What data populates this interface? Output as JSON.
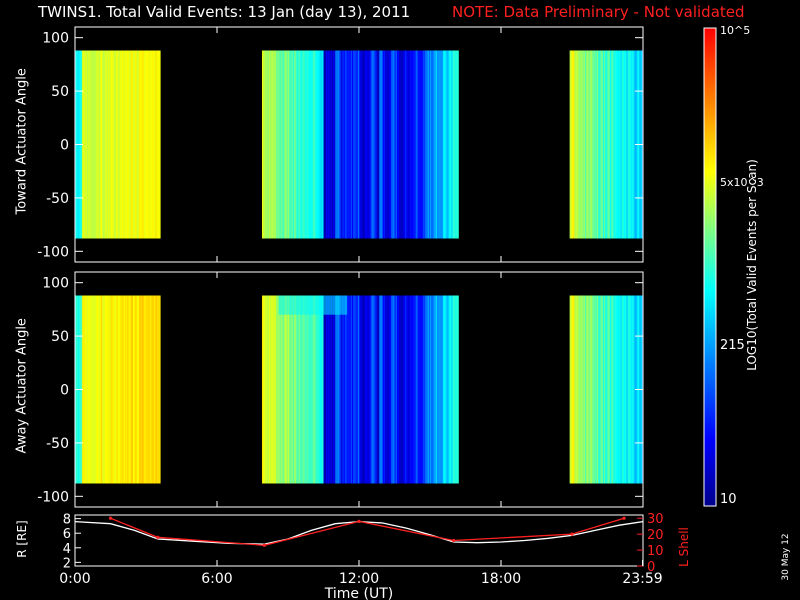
{
  "title": {
    "main": "TWINS1. Total Valid Events: 13 Jan (day  13), 2011",
    "note": "NOTE: Data Preliminary - Not validated"
  },
  "colorbar": {
    "label": "LOG10(Total Valid Events per Scan)",
    "ticks": [
      "10^5",
      "5x10^3",
      "215",
      "10"
    ],
    "colors": [
      "#00008c",
      "#0000ff",
      "#0080ff",
      "#00ffff",
      "#80ff80",
      "#ffff00",
      "#ff8000",
      "#ff0000"
    ]
  },
  "date_stamp": "30 May 12",
  "chart_data": [
    {
      "type": "heatmap",
      "name": "toward-panel",
      "ylabel": "Toward Actuator Angle",
      "ylim": [
        -110,
        110
      ],
      "yticks": [
        100,
        50,
        0,
        -50,
        -100
      ],
      "xlim": [
        0,
        24
      ],
      "data_ylim": [
        -88,
        88
      ],
      "segments": [
        {
          "start": 0.0,
          "end": 3.6
        },
        {
          "start": 7.9,
          "end": 16.2
        },
        {
          "start": 20.9,
          "end": 24.0
        }
      ]
    },
    {
      "type": "heatmap",
      "name": "away-panel",
      "ylabel": "Away Actuator Angle",
      "ylim": [
        -110,
        110
      ],
      "yticks": [
        100,
        50,
        0,
        -50,
        -100
      ],
      "xlim": [
        0,
        24
      ],
      "data_ylim": [
        -88,
        88
      ],
      "segments": [
        {
          "start": 0.0,
          "end": 3.6
        },
        {
          "start": 7.9,
          "end": 16.2
        },
        {
          "start": 20.9,
          "end": 24.0
        }
      ]
    },
    {
      "type": "line",
      "name": "orbit-panel",
      "ylabel_left": "R [RE]",
      "ylabel_right": "L Shell",
      "yticks_left": [
        8,
        6,
        4,
        2
      ],
      "yticks_right": [
        30,
        20,
        10,
        0
      ],
      "ylim_left": [
        1.5,
        8.5
      ],
      "ylim_right": [
        0,
        32
      ],
      "xlabel": "Time (UT)",
      "xtick_labels": [
        "0:00",
        "6:00",
        "12:00",
        "18:00",
        "23:59"
      ],
      "xticks": [
        0,
        6,
        12,
        18,
        23.98
      ],
      "xlim": [
        0,
        24
      ],
      "series": [
        {
          "color": "#ffffff",
          "x": [
            0,
            1.5,
            2.5,
            3.5,
            5,
            6.5,
            8,
            9,
            10,
            11,
            12,
            13,
            14,
            15,
            16,
            17,
            18,
            19,
            20,
            21,
            22,
            23,
            24
          ],
          "values": [
            7.6,
            7.3,
            6.4,
            5.2,
            4.9,
            4.6,
            4.5,
            5.2,
            6.4,
            7.3,
            7.6,
            7.4,
            6.7,
            5.8,
            4.8,
            4.7,
            4.8,
            5.0,
            5.3,
            5.7,
            6.4,
            7.1,
            7.6
          ]
        },
        {
          "color": "#ff2020",
          "axis": "right",
          "x": [
            1.5,
            3.5,
            8,
            12,
            16,
            21,
            23.2
          ],
          "values": [
            30,
            18,
            13,
            28,
            16,
            20,
            30
          ]
        }
      ]
    }
  ]
}
